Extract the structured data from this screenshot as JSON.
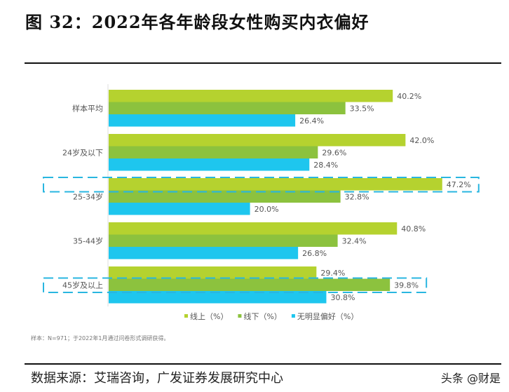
{
  "title": "图 32：2022年各年龄段女性购买内衣偏好",
  "source": "数据来源：艾瑞咨询，广发证券发展研究中心",
  "watermark": "头条 @财是",
  "chart_data": {
    "type": "bar",
    "orientation": "horizontal",
    "categories": [
      "样本平均",
      "24岁及以下",
      "25-34岁",
      "35-44岁",
      "45岁及以上"
    ],
    "series": [
      {
        "name": "线上（%）",
        "color": "#b5d22f",
        "values": [
          40.2,
          42.0,
          47.2,
          40.8,
          29.4
        ]
      },
      {
        "name": "线下（%）",
        "color": "#8cc23e",
        "values": [
          33.5,
          29.6,
          32.8,
          32.4,
          39.8
        ]
      },
      {
        "name": "无明显偏好（%）",
        "color": "#1ec6ee",
        "values": [
          26.4,
          28.4,
          20.0,
          26.8,
          30.8
        ]
      }
    ],
    "highlights": [
      {
        "category": "25-34岁",
        "series": "线上（%）"
      },
      {
        "category": "45岁及以上",
        "series": "线下（%）"
      }
    ],
    "highlight_color": "#29b6e0",
    "legend": "bottom-right",
    "note": "样本：N=971；于2022年1月通过问卷形式调研获得。",
    "grid": false
  }
}
